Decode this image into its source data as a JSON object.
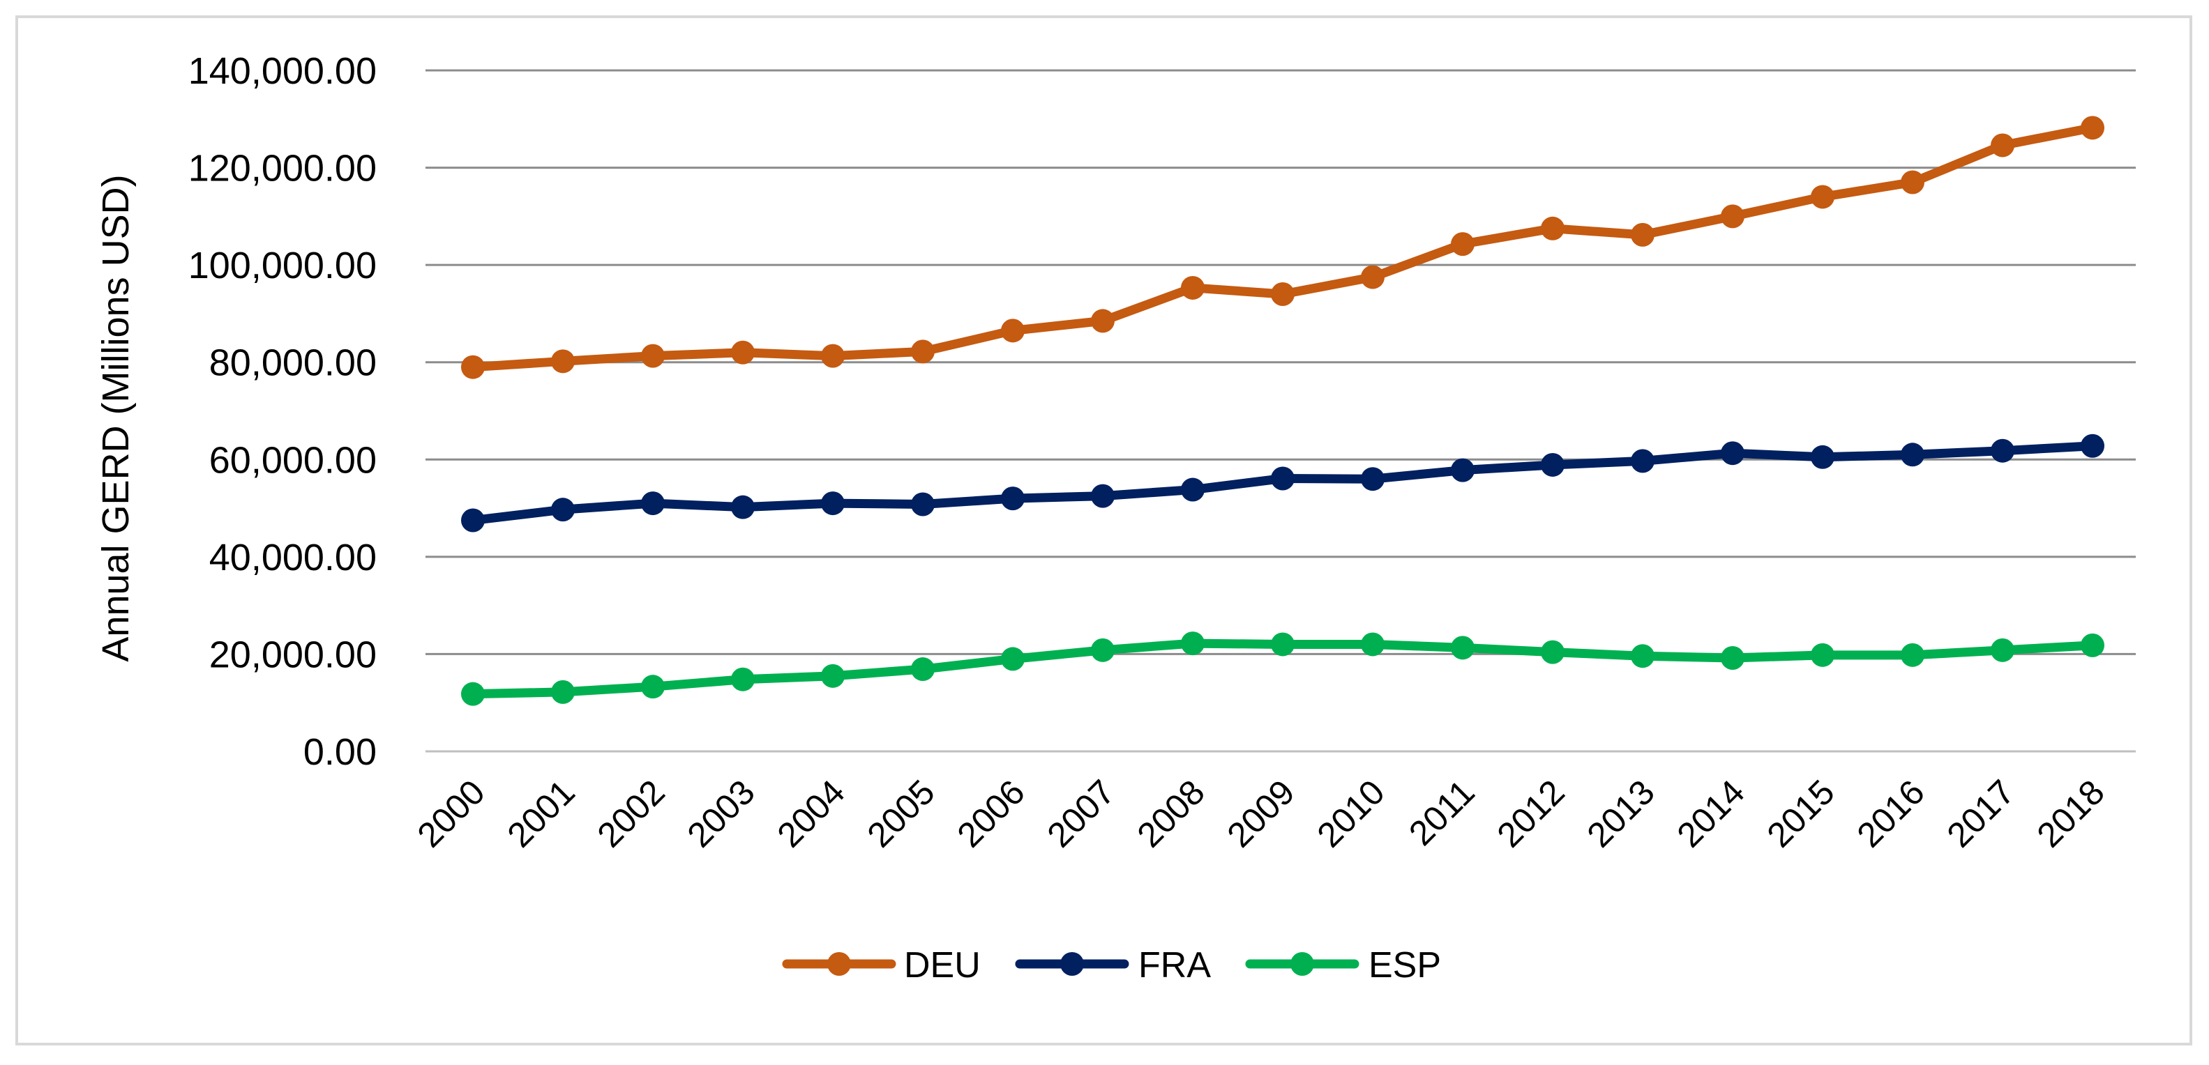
{
  "chart_data": {
    "type": "line",
    "title": "",
    "xlabel": "",
    "ylabel": "Annual GERD (Millions USD)",
    "ylim": [
      0,
      140000
    ],
    "yticks": [
      0,
      20000,
      40000,
      60000,
      80000,
      100000,
      120000,
      140000
    ],
    "ytick_labels": [
      "0.00",
      "20,000.00",
      "40,000.00",
      "60,000.00",
      "80,000.00",
      "100,000.00",
      "120,000.00",
      "140,000.00"
    ],
    "grid": true,
    "legend_position": "bottom",
    "categories": [
      "2000",
      "2001",
      "2002",
      "2003",
      "2004",
      "2005",
      "2006",
      "2007",
      "2008",
      "2009",
      "2010",
      "2011",
      "2012",
      "2013",
      "2014",
      "2015",
      "2016",
      "2017",
      "2018"
    ],
    "series": [
      {
        "name": "DEU",
        "color": "#c55a11",
        "values": [
          79000,
          80200,
          81300,
          82000,
          81300,
          82200,
          86500,
          88500,
          95300,
          94000,
          97500,
          104300,
          107500,
          106200,
          110000,
          114000,
          117000,
          124600,
          128200
        ]
      },
      {
        "name": "FRA",
        "color": "#002060",
        "values": [
          47500,
          49700,
          51000,
          50200,
          51000,
          50800,
          52000,
          52500,
          53800,
          56100,
          56000,
          57800,
          58900,
          59700,
          61300,
          60500,
          61000,
          61800,
          62800
        ]
      },
      {
        "name": "ESP",
        "color": "#00b050",
        "values": [
          11800,
          12200,
          13300,
          14800,
          15500,
          16900,
          19000,
          20800,
          22200,
          22000,
          22000,
          21300,
          20400,
          19600,
          19200,
          19800,
          19800,
          20800,
          21800
        ]
      }
    ]
  }
}
